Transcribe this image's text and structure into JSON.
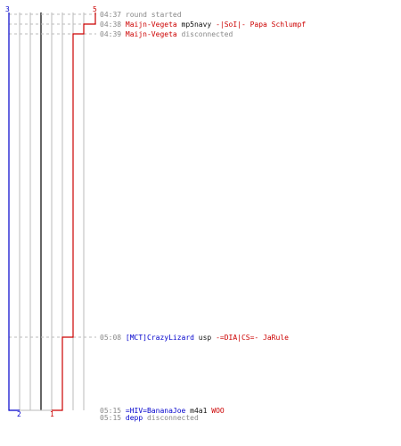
{
  "colors": {
    "red_team": "#cc0000",
    "blue_team": "#0000cc",
    "grid": "#bbbbbb",
    "grid_dark": "#666666",
    "time": "#888888",
    "text": "#111111"
  },
  "counters": {
    "blue_start": "3",
    "red_start": "5",
    "blue_end": "2",
    "red_end": "1"
  },
  "events": [
    {
      "time": "04:37",
      "parts": [
        {
          "text": "round started",
          "color": "gray"
        }
      ]
    },
    {
      "time": "04:38",
      "parts": [
        {
          "text": "Maijn-Vegeta",
          "color": "red"
        },
        {
          "text": " mp5navy ",
          "color": "dark"
        },
        {
          "text": "-|SoI|- Papa Schlumpf",
          "color": "red"
        }
      ]
    },
    {
      "time": "04:39",
      "parts": [
        {
          "text": "Maijn-Vegeta",
          "color": "red"
        },
        {
          "text": " disconnected",
          "color": "gray"
        }
      ]
    },
    {
      "time": "05:08",
      "parts": [
        {
          "text": "[MCT]CrazyLizard",
          "color": "blue"
        },
        {
          "text": " usp ",
          "color": "dark"
        },
        {
          "text": "-=DIA|CS=- JaRule",
          "color": "red"
        }
      ]
    },
    {
      "time": "05:15",
      "parts": [
        {
          "text": "=HIV=BananaJoe",
          "color": "blue"
        },
        {
          "text": " m4a1 ",
          "color": "dark"
        },
        {
          "text": "WOO",
          "color": "red"
        }
      ]
    },
    {
      "time": "05:15",
      "parts": [
        {
          "text": "depp",
          "color": "blue"
        },
        {
          "text": " disconnected",
          "color": "gray"
        }
      ]
    }
  ]
}
